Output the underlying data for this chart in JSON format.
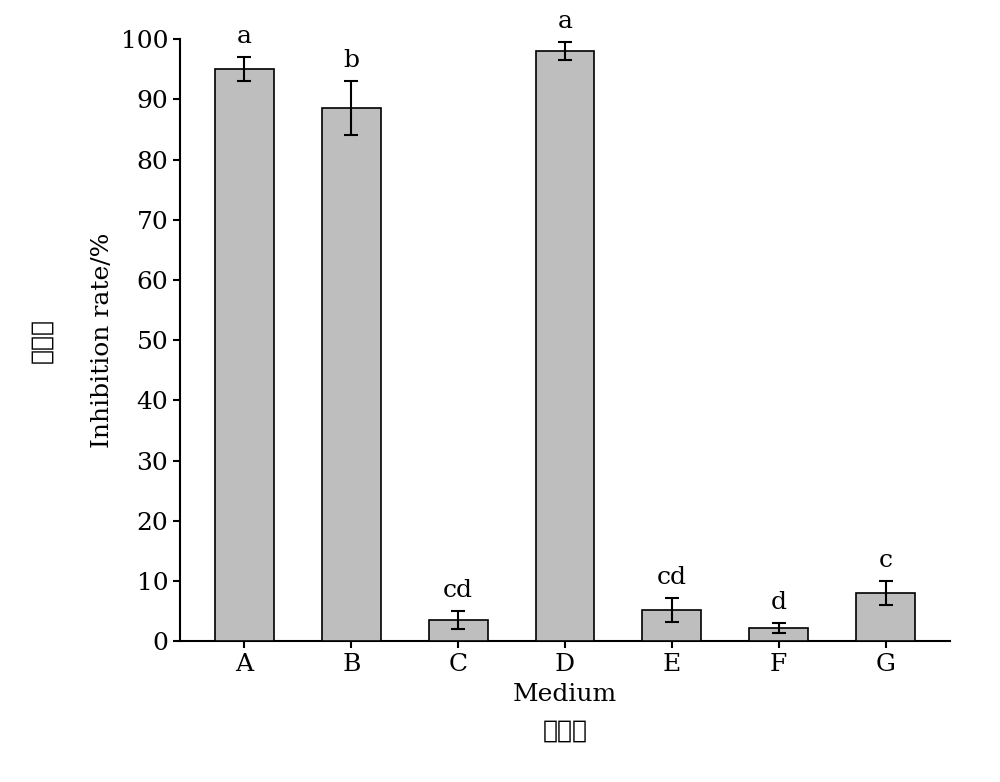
{
  "categories": [
    "A",
    "B",
    "C",
    "D",
    "E",
    "F",
    "G"
  ],
  "values": [
    95.0,
    88.5,
    3.5,
    98.0,
    5.2,
    2.2,
    8.0
  ],
  "errors": [
    2.0,
    4.5,
    1.5,
    1.5,
    2.0,
    0.8,
    2.0
  ],
  "significance": [
    "a",
    "b",
    "cd",
    "a",
    "cd",
    "d",
    "c"
  ],
  "bar_color": "#bebebe",
  "bar_edge_color": "#000000",
  "background_color": "#ffffff",
  "ylabel_chinese": "抑菌率",
  "ylabel_english": "Inhibition rate/%",
  "xlabel_chinese": "培山基",
  "xlabel_english": "Medium",
  "ylim": [
    0,
    100
  ],
  "yticks": [
    0,
    10,
    20,
    30,
    40,
    50,
    60,
    70,
    80,
    90,
    100
  ],
  "bar_width": 0.55,
  "sig_fontsize": 18,
  "tick_fontsize": 18,
  "label_fontsize": 18,
  "chinese_fontsize": 18,
  "errorbar_capsize": 5,
  "errorbar_linewidth": 1.5
}
